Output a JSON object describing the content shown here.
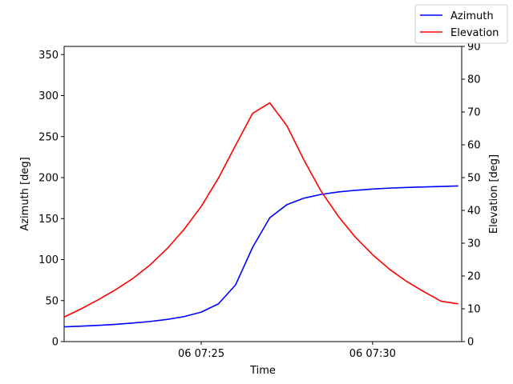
{
  "chart_data": {
    "type": "line",
    "xlabel": "Time",
    "x_ticks": [
      {
        "label": "06 07:25",
        "minute": 25
      },
      {
        "label": "06 07:30",
        "minute": 30
      }
    ],
    "x_range_minutes": [
      21.0,
      32.6
    ],
    "x_minutes": [
      21.0,
      21.5,
      22.0,
      22.5,
      23.0,
      23.5,
      24.0,
      24.5,
      25.0,
      25.5,
      26.0,
      26.5,
      27.0,
      27.5,
      28.0,
      28.5,
      29.0,
      29.5,
      30.0,
      30.5,
      31.0,
      31.5,
      32.0,
      32.5
    ],
    "left_axis": {
      "label": "Azimuth [deg]",
      "range": [
        0,
        360
      ],
      "ticks": [
        0,
        50,
        100,
        150,
        200,
        250,
        300,
        350
      ]
    },
    "right_axis": {
      "label": "Elevation [deg]",
      "range": [
        0,
        90
      ],
      "ticks": [
        0,
        10,
        20,
        30,
        40,
        50,
        60,
        70,
        80,
        90
      ]
    },
    "series": [
      {
        "name": "Azimuth",
        "axis": "left",
        "color": "#0000ff",
        "values": [
          18,
          18.8,
          19.8,
          21,
          22.6,
          24.5,
          27,
          30.5,
          36,
          46,
          69,
          115,
          151,
          167,
          175,
          179.5,
          182.5,
          184.5,
          186,
          187.2,
          188,
          188.6,
          189.2,
          189.8
        ]
      },
      {
        "name": "Elevation",
        "axis": "right",
        "color": "#ff0000",
        "values": [
          7.5,
          10,
          12.8,
          15.8,
          19.2,
          23.3,
          28.3,
          34.2,
          41.2,
          49.8,
          59.8,
          69.6,
          72.8,
          65.8,
          55.3,
          45.8,
          38.2,
          31.8,
          26.5,
          22.0,
          18.3,
          15.2,
          12.3,
          11.5
        ]
      }
    ],
    "legend": {
      "placement": "top-right, outside axes",
      "entries": [
        "Azimuth",
        "Elevation"
      ]
    },
    "grid": false
  }
}
